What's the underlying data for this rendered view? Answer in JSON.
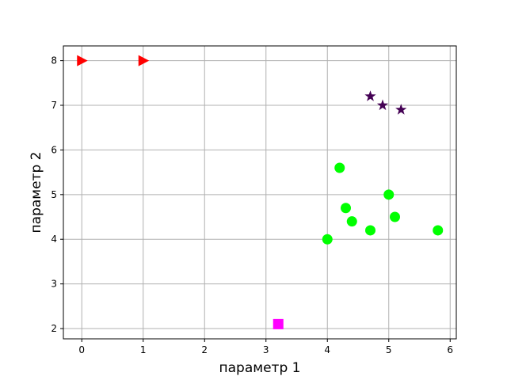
{
  "chart_data": {
    "type": "scatter",
    "xlabel": "параметр 1",
    "ylabel": "параметр 2",
    "xlim": [
      -0.3,
      6.1
    ],
    "ylim": [
      1.77,
      8.33
    ],
    "xticks": [
      0,
      1,
      2,
      3,
      4,
      5,
      6
    ],
    "yticks": [
      2,
      3,
      4,
      5,
      6,
      7,
      8
    ],
    "grid": true,
    "series": [
      {
        "marker": "triangle-right",
        "color": "#ff0000",
        "points": [
          [
            0,
            8
          ],
          [
            1,
            8
          ]
        ]
      },
      {
        "marker": "star",
        "color": "#440154",
        "points": [
          [
            4.7,
            7.2
          ],
          [
            4.9,
            7.0
          ],
          [
            5.2,
            6.9
          ]
        ]
      },
      {
        "marker": "circle",
        "color": "#00ff00",
        "points": [
          [
            4.2,
            5.6
          ],
          [
            5.0,
            5.0
          ],
          [
            4.3,
            4.7
          ],
          [
            5.1,
            4.5
          ],
          [
            4.4,
            4.4
          ],
          [
            4.0,
            4.0
          ],
          [
            4.7,
            4.2
          ],
          [
            5.8,
            4.2
          ]
        ]
      },
      {
        "marker": "square",
        "color": "#ff00ff",
        "points": [
          [
            3.2,
            2.1
          ]
        ]
      }
    ]
  }
}
